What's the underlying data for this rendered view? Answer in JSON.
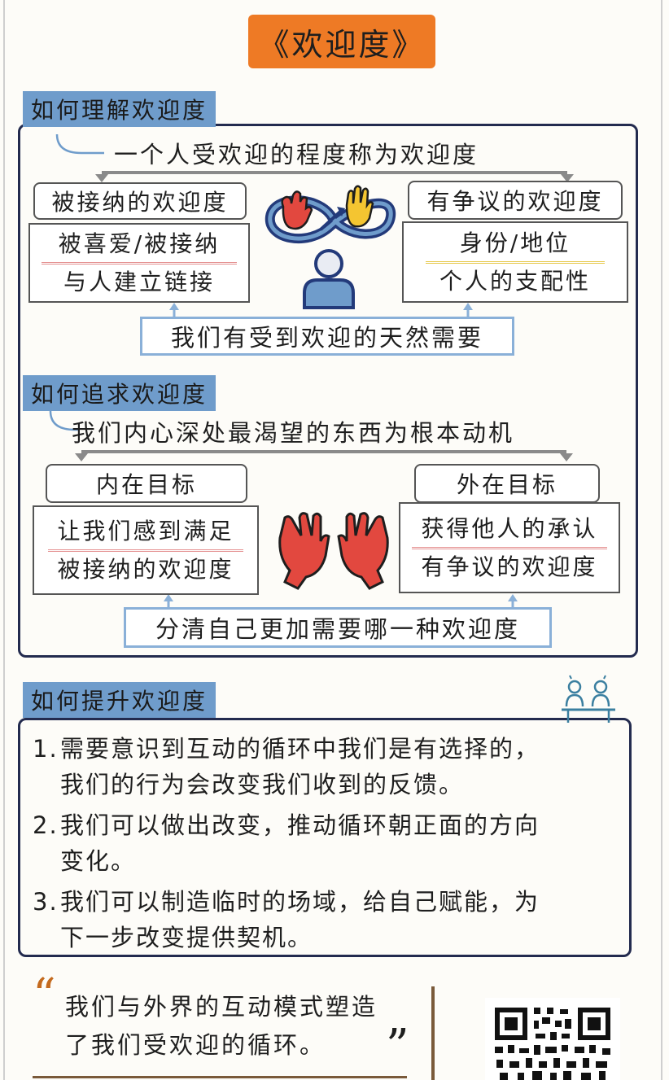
{
  "title": "《欢迎度》",
  "section1": {
    "tab": "如何理解欢迎度",
    "definition": "一个人受欢迎的程度称为欢迎度",
    "left_tag": "被接纳的欢迎度",
    "left_lines": [
      "被喜爱/被接纳",
      "与人建立链接"
    ],
    "right_tag": "有争议的欢迎度",
    "right_lines": [
      "身份/地位",
      "个人的支配性"
    ],
    "bottom": "我们有受到欢迎的天然需要"
  },
  "section2": {
    "tab": "如何追求欢迎度",
    "definition": "我们内心深处最渴望的东西为根本动机",
    "left_tag": "内在目标",
    "left_lines": [
      "让我们感到满足",
      "被接纳的欢迎度"
    ],
    "right_tag": "外在目标",
    "right_lines": [
      "获得他人的承认",
      "有争议的欢迎度"
    ],
    "bottom": "分清自己更加需要哪一种欢迎度"
  },
  "section3": {
    "tab": "如何提升欢迎度",
    "items": [
      {
        "num": "1.",
        "lines": [
          "需要意识到互动的循环中我们是有选择的，",
          "我们的行为会改变我们收到的反馈。"
        ]
      },
      {
        "num": "2.",
        "lines": [
          "我们可以做出改变，推动循环朝正面的方向",
          "变化。"
        ]
      },
      {
        "num": "3.",
        "lines": [
          "我们可以制造临时的场域，给自己赋能，为",
          "下一步改变提供契机。"
        ]
      }
    ]
  },
  "quote": {
    "open": "“",
    "close": "”",
    "lines": [
      "我们与外界的互动模式塑造",
      "了我们受欢迎的循环。"
    ]
  },
  "colors": {
    "accent_orange": "#ee7a25",
    "tab_blue": "#6f9ccb",
    "frame_navy": "#232b4f",
    "hand_red": "#e2483f",
    "hand_yellow": "#f4c531",
    "box_blue": "#8ab0d8"
  },
  "icons": [
    "infinity-loop-icon",
    "red-hand-icon",
    "yellow-hand-icon",
    "person-icon",
    "red-gloves-icon",
    "meeting-people-icon",
    "qr-code-icon"
  ]
}
